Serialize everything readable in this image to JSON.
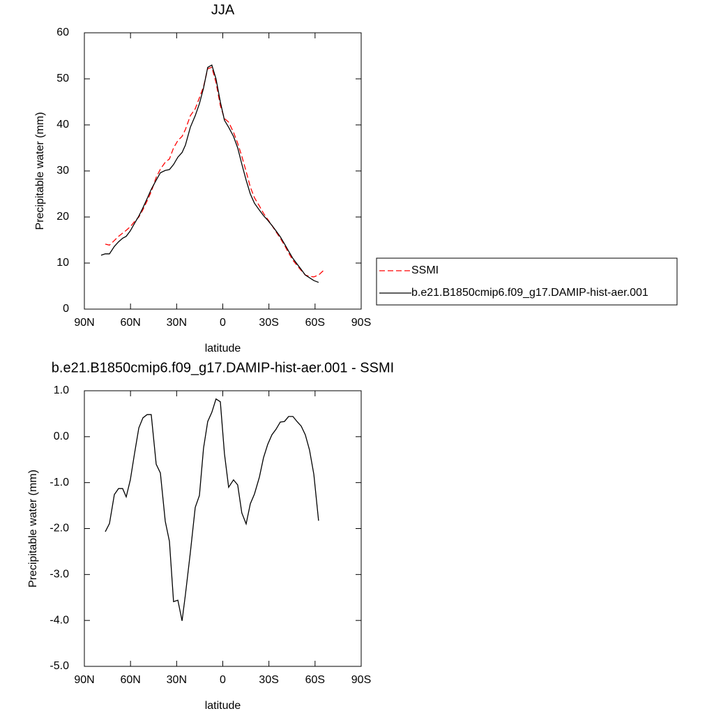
{
  "chart_data": [
    {
      "type": "line",
      "title": "JJA",
      "xlabel": "latitude",
      "ylabel": "Precipitable water (mm)",
      "xlim": [
        90,
        -90
      ],
      "xticks": [
        {
          "value": 90,
          "label": "90N"
        },
        {
          "value": 60,
          "label": "60N"
        },
        {
          "value": 30,
          "label": "30N"
        },
        0,
        {
          "value": -30,
          "label": "30S"
        },
        {
          "value": -60,
          "label": "60S"
        },
        {
          "value": -90,
          "label": "90S"
        }
      ],
      "ylim": [
        0,
        60
      ],
      "yticks": [
        0,
        10,
        20,
        30,
        40,
        50,
        60
      ],
      "legend": "right",
      "series": [
        {
          "name": "SSMI",
          "color": "#ff0000",
          "dash": true,
          "x": [
            76.4,
            73.7,
            70.5,
            67.8,
            65.1,
            62.8,
            60.1,
            57.4,
            54.6,
            51.9,
            49.2,
            46.5,
            43.3,
            40.6,
            37.4,
            34.7,
            32.0,
            29.2,
            26.5,
            24.3,
            21.1,
            17.9,
            15.2,
            12.5,
            9.8,
            7.1,
            4.4,
            1.6,
            -1.1,
            -3.8,
            -7.0,
            -9.7,
            -12.4,
            -15.2,
            -17.9,
            -20.6,
            -23.8,
            -26.5,
            -29.2,
            -31.9,
            -34.6,
            -37.4,
            -40.1,
            -42.8,
            -45.6,
            -48.3,
            -51.0,
            -53.7,
            -56.4,
            -59.2,
            -62.3,
            -65.5
          ],
          "values": [
            14.1,
            13.9,
            14.9,
            15.8,
            16.5,
            17.1,
            17.9,
            19.0,
            20.0,
            21.6,
            23.5,
            25.5,
            28.6,
            30.4,
            31.9,
            32.6,
            35.0,
            36.6,
            37.5,
            39.0,
            42.0,
            43.5,
            45.9,
            48.3,
            52.2,
            52.5,
            49.2,
            44.2,
            41.4,
            40.6,
            38.4,
            36.0,
            33.2,
            29.9,
            26.5,
            24.2,
            22.4,
            20.8,
            19.5,
            18.2,
            16.8,
            15.4,
            13.9,
            12.2,
            10.6,
            9.5,
            8.4,
            7.4,
            7.1,
            7.0,
            7.4,
            8.4
          ]
        },
        {
          "name": "b.e21.B1850cmip6.f09_g17.DAMIP-hist-aer.001",
          "color": "#000000",
          "dash": false,
          "x": [
            79.1,
            76.4,
            73.7,
            70.5,
            67.8,
            65.1,
            62.8,
            60.1,
            57.4,
            54.6,
            51.9,
            49.2,
            46.5,
            43.3,
            40.6,
            37.4,
            34.7,
            32.0,
            29.2,
            26.5,
            24.3,
            21.1,
            17.9,
            15.2,
            12.5,
            9.8,
            7.1,
            4.4,
            1.6,
            -1.1,
            -3.8,
            -7.0,
            -9.7,
            -12.4,
            -15.2,
            -17.9,
            -20.6,
            -23.8,
            -26.5,
            -29.2,
            -31.9,
            -34.6,
            -37.4,
            -40.1,
            -42.8,
            -45.6,
            -48.3,
            -51.0,
            -53.7,
            -56.4,
            -59.2,
            -62.3
          ],
          "values": [
            11.7,
            12.0,
            12.0,
            13.6,
            14.6,
            15.4,
            15.8,
            17.0,
            18.6,
            20.2,
            22.0,
            24.0,
            26.0,
            28.0,
            29.6,
            30.1,
            30.3,
            31.4,
            33.0,
            34.0,
            35.6,
            39.5,
            42.0,
            44.6,
            48.0,
            52.5,
            53.0,
            50.0,
            45.0,
            41.0,
            39.5,
            37.5,
            35.0,
            31.5,
            28.0,
            25.0,
            23.0,
            21.5,
            20.3,
            19.3,
            18.2,
            17.0,
            15.7,
            14.2,
            12.6,
            11.0,
            9.8,
            8.6,
            7.4,
            6.8,
            6.2,
            5.8
          ]
        }
      ]
    },
    {
      "type": "line",
      "title": "b.e21.B1850cmip6.f09_g17.DAMIP-hist-aer.001 - SSMI",
      "xlabel": "latitude",
      "ylabel": "Precipitable water (mm)",
      "xlim": [
        90,
        -90
      ],
      "xticks": [
        {
          "value": 90,
          "label": "90N"
        },
        {
          "value": 60,
          "label": "60N"
        },
        {
          "value": 30,
          "label": "30N"
        },
        0,
        {
          "value": -30,
          "label": "30S"
        },
        {
          "value": -60,
          "label": "60S"
        },
        {
          "value": -90,
          "label": "90S"
        }
      ],
      "ylim": [
        -5,
        1
      ],
      "yticks": [
        {
          "value": -5,
          "label": "-5.0"
        },
        {
          "value": -4,
          "label": "-4.0"
        },
        {
          "value": -3,
          "label": "-3.0"
        },
        {
          "value": -2,
          "label": "-2.0"
        },
        {
          "value": -1,
          "label": "-1.0"
        },
        {
          "value": 0,
          "label": "0.0"
        },
        {
          "value": 1,
          "label": "1.0"
        }
      ],
      "series": [
        {
          "color": "#000000",
          "dash": false,
          "x": [
            76.4,
            73.7,
            70.5,
            67.8,
            65.1,
            62.8,
            60.1,
            57.4,
            54.6,
            51.9,
            49.2,
            46.5,
            43.3,
            40.6,
            37.4,
            34.7,
            32.0,
            29.2,
            26.5,
            24.3,
            21.1,
            17.9,
            15.2,
            12.5,
            9.8,
            7.1,
            4.4,
            1.6,
            -1.1,
            -3.8,
            -7.0,
            -9.7,
            -12.4,
            -15.2,
            -17.9,
            -20.6,
            -23.8,
            -26.5,
            -29.2,
            -31.9,
            -34.6,
            -37.4,
            -40.1,
            -42.8,
            -45.6,
            -48.3,
            -51.0,
            -53.7,
            -56.4,
            -59.2,
            -62.3
          ],
          "values": [
            -2.07,
            -1.89,
            -1.26,
            -1.13,
            -1.13,
            -1.31,
            -0.94,
            -0.37,
            0.19,
            0.41,
            0.48,
            0.48,
            -0.6,
            -0.79,
            -1.84,
            -2.28,
            -3.59,
            -3.56,
            -4.01,
            -3.44,
            -2.52,
            -1.54,
            -1.28,
            -0.25,
            0.33,
            0.53,
            0.82,
            0.76,
            -0.37,
            -1.1,
            -0.94,
            -1.05,
            -1.66,
            -1.9,
            -1.46,
            -1.25,
            -0.88,
            -0.46,
            -0.17,
            0.04,
            0.16,
            0.32,
            0.33,
            0.44,
            0.44,
            0.33,
            0.23,
            0.04,
            -0.29,
            -0.82,
            -1.83
          ]
        }
      ]
    }
  ]
}
